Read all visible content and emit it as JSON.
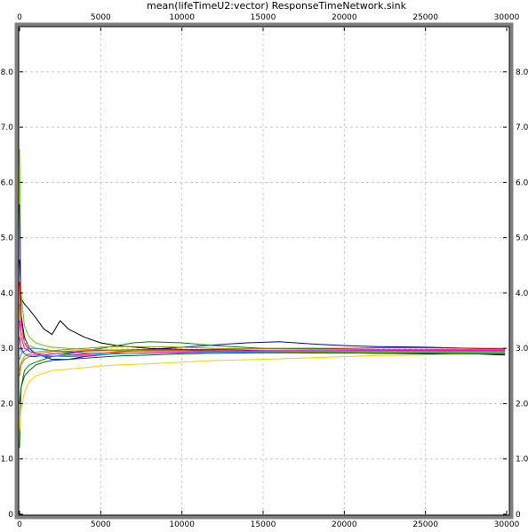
{
  "chart_data": {
    "type": "line",
    "title": "mean(lifeTimeU2:vector) ResponseTimeNetwork.sink",
    "xlabel": "",
    "ylabel": "",
    "xlim": [
      0,
      30000
    ],
    "ylim": [
      0,
      8.8
    ],
    "x_ticks": [
      0,
      5000,
      10000,
      15000,
      20000,
      25000,
      30000
    ],
    "y_ticks": [
      0,
      1.0,
      2.0,
      3.0,
      4.0,
      5.0,
      6.0,
      7.0,
      8.0
    ],
    "x_tick_labels": [
      "0",
      "5000",
      "10000",
      "15000",
      "20000",
      "25000",
      "30000"
    ],
    "y_tick_labels": [
      "0",
      "1.0",
      "2.0",
      "3.0",
      "4.0",
      "5.0",
      "6.0",
      "7.0",
      "8.0"
    ],
    "grid": true,
    "legend": "none",
    "series": [
      {
        "color": "#000000",
        "x": [
          0,
          100,
          300,
          600,
          1000,
          1500,
          2000,
          2500,
          3000,
          4000,
          5000,
          6000,
          8000,
          10000,
          12000,
          15000,
          18000,
          20000,
          22000,
          25000,
          28000,
          29900
        ],
        "y": [
          4.6,
          3.9,
          3.8,
          3.7,
          3.55,
          3.35,
          3.25,
          3.5,
          3.35,
          3.2,
          3.1,
          3.05,
          3.0,
          2.98,
          2.95,
          2.93,
          2.92,
          2.92,
          2.91,
          2.9,
          2.9,
          2.88
        ]
      },
      {
        "color": "#0000cc",
        "x": [
          0,
          100,
          300,
          600,
          1000,
          1500,
          2000,
          3000,
          4000,
          5000,
          6000,
          8000,
          10000,
          12000,
          14000,
          16000,
          18000,
          20000,
          22000,
          25000,
          28000,
          29900
        ],
        "y": [
          5.6,
          3.6,
          3.2,
          3.0,
          2.9,
          2.85,
          2.8,
          2.8,
          2.85,
          2.88,
          2.92,
          2.98,
          3.02,
          3.06,
          3.1,
          3.12,
          3.08,
          3.05,
          3.03,
          3.02,
          3.0,
          2.98
        ]
      },
      {
        "color": "#ff0000",
        "x": [
          0,
          100,
          300,
          600,
          1000,
          1500,
          2000,
          3000,
          4000,
          5000,
          6000,
          8000,
          10000,
          12000,
          15000,
          18000,
          20000,
          22000,
          25000,
          28000,
          29900
        ],
        "y": [
          4.2,
          3.5,
          3.1,
          2.95,
          2.9,
          2.85,
          2.85,
          2.88,
          2.9,
          2.92,
          2.94,
          2.96,
          2.97,
          2.98,
          2.99,
          3.0,
          3.0,
          3.01,
          3.01,
          3.0,
          3.0
        ]
      },
      {
        "color": "#008800",
        "x": [
          0,
          100,
          300,
          600,
          1000,
          1500,
          2000,
          3000,
          4000,
          5000,
          6000,
          7000,
          8000,
          10000,
          12000,
          15000,
          18000,
          20000,
          22000,
          25000,
          28000,
          29900
        ],
        "y": [
          1.2,
          2.3,
          2.6,
          2.7,
          2.75,
          2.8,
          2.85,
          2.9,
          2.95,
          3.0,
          3.05,
          3.1,
          3.12,
          3.1,
          3.05,
          3.0,
          3.0,
          2.98,
          2.97,
          2.96,
          2.96,
          2.95
        ]
      },
      {
        "color": "#ffcc00",
        "x": [
          0,
          100,
          300,
          600,
          1000,
          1500,
          2000,
          3000,
          4000,
          5000,
          6000,
          8000,
          10000,
          12000,
          15000,
          18000,
          20000,
          22000,
          25000,
          28000,
          29900
        ],
        "y": [
          1.5,
          1.9,
          2.2,
          2.4,
          2.5,
          2.55,
          2.6,
          2.62,
          2.65,
          2.68,
          2.7,
          2.72,
          2.75,
          2.78,
          2.8,
          2.83,
          2.85,
          2.87,
          2.88,
          2.9,
          2.9
        ]
      },
      {
        "color": "#ff8800",
        "x": [
          0,
          100,
          300,
          600,
          1000,
          1500,
          2000,
          3000,
          4000,
          5000,
          6000,
          8000,
          10000,
          12000,
          15000,
          18000,
          20000,
          22000,
          25000,
          28000,
          29900
        ],
        "y": [
          3.8,
          3.3,
          3.1,
          3.05,
          3.0,
          2.98,
          2.95,
          2.93,
          2.92,
          2.92,
          2.93,
          2.94,
          2.95,
          2.95,
          2.95,
          2.94,
          2.94,
          2.94,
          2.94,
          2.95,
          2.95
        ]
      },
      {
        "color": "#00aaaa",
        "x": [
          0,
          100,
          300,
          600,
          1000,
          1500,
          2000,
          3000,
          4000,
          5000,
          6000,
          8000,
          10000,
          12000,
          15000,
          18000,
          20000,
          22000,
          25000,
          28000,
          29900
        ],
        "y": [
          2.8,
          2.9,
          2.95,
          3.0,
          3.0,
          2.98,
          2.96,
          2.94,
          2.92,
          2.9,
          2.9,
          2.91,
          2.92,
          2.93,
          2.93,
          2.93,
          2.92,
          2.92,
          2.92,
          2.92,
          2.92
        ]
      },
      {
        "color": "#aa00aa",
        "x": [
          0,
          100,
          300,
          600,
          1000,
          1500,
          2000,
          3000,
          4000,
          5000,
          6000,
          8000,
          10000,
          12000,
          15000,
          18000,
          20000,
          22000,
          25000,
          28000,
          29900
        ],
        "y": [
          3.2,
          3.0,
          2.9,
          2.85,
          2.85,
          2.88,
          2.9,
          2.92,
          2.95,
          2.96,
          2.97,
          2.98,
          2.98,
          2.97,
          2.96,
          2.96,
          2.96,
          2.97,
          2.97,
          2.97,
          2.97
        ]
      },
      {
        "color": "#66cc00",
        "x": [
          0,
          100,
          300,
          600,
          1000,
          1500,
          2000,
          3000,
          4000,
          5000,
          6000,
          8000,
          10000,
          12000,
          15000,
          18000,
          20000,
          22000,
          25000,
          28000,
          29900
        ],
        "y": [
          6.6,
          4.0,
          3.4,
          3.2,
          3.1,
          3.05,
          3.02,
          3.0,
          2.98,
          2.97,
          2.96,
          2.95,
          2.95,
          2.94,
          2.94,
          2.93,
          2.93,
          2.93,
          2.93,
          2.93,
          2.93
        ]
      },
      {
        "color": "#cc6600",
        "x": [
          0,
          100,
          300,
          600,
          1000,
          1500,
          2000,
          3000,
          4000,
          5000,
          6000,
          8000,
          10000,
          12000,
          15000,
          18000,
          20000,
          22000,
          25000,
          28000,
          29900
        ],
        "y": [
          2.5,
          2.7,
          2.8,
          2.85,
          2.9,
          2.92,
          2.94,
          2.95,
          2.96,
          2.97,
          2.97,
          2.97,
          2.96,
          2.95,
          2.94,
          2.94,
          2.95,
          2.95,
          2.96,
          2.96,
          2.96
        ]
      },
      {
        "color": "#ff00ff",
        "x": [
          0,
          100,
          300,
          600,
          1000,
          1500,
          2000,
          3000,
          4000,
          5000,
          6000,
          8000,
          10000,
          12000,
          15000,
          18000,
          20000,
          22000,
          25000,
          28000,
          29900
        ],
        "y": [
          3.5,
          3.2,
          3.0,
          2.95,
          2.9,
          2.88,
          2.86,
          2.85,
          2.86,
          2.88,
          2.9,
          2.92,
          2.93,
          2.94,
          2.95,
          2.96,
          2.96,
          2.96,
          2.96,
          2.96,
          2.96
        ]
      },
      {
        "color": "#006600",
        "x": [
          0,
          100,
          300,
          600,
          1000,
          1500,
          2000,
          3000,
          4000,
          5000,
          6000,
          8000,
          10000,
          12000,
          15000,
          18000,
          20000,
          22000,
          25000,
          28000,
          29900
        ],
        "y": [
          2.0,
          2.3,
          2.5,
          2.6,
          2.7,
          2.75,
          2.78,
          2.8,
          2.82,
          2.84,
          2.86,
          2.88,
          2.9,
          2.91,
          2.92,
          2.92,
          2.92,
          2.91,
          2.91,
          2.9,
          2.9
        ]
      },
      {
        "color": "#3399ff",
        "x": [
          0,
          100,
          300,
          600,
          1000,
          1500,
          2000,
          3000,
          4000,
          5000,
          6000,
          8000,
          10000,
          12000,
          15000,
          18000,
          20000,
          22000,
          25000,
          28000,
          29900
        ],
        "y": [
          3.0,
          2.95,
          2.9,
          2.88,
          2.87,
          2.86,
          2.86,
          2.87,
          2.88,
          2.89,
          2.9,
          2.91,
          2.92,
          2.93,
          2.94,
          2.95,
          2.95,
          2.95,
          2.94,
          2.94,
          2.94
        ]
      },
      {
        "color": "#999900",
        "x": [
          0,
          100,
          300,
          600,
          1000,
          1500,
          2000,
          3000,
          4000,
          5000,
          6000,
          8000,
          10000,
          12000,
          15000,
          18000,
          20000,
          22000,
          25000,
          28000,
          29900
        ],
        "y": [
          2.6,
          2.75,
          2.85,
          2.9,
          2.93,
          2.95,
          2.96,
          2.98,
          3.0,
          3.02,
          3.03,
          3.03,
          3.02,
          3.0,
          2.99,
          2.98,
          2.98,
          2.98,
          2.98,
          2.98,
          2.98
        ]
      }
    ]
  }
}
